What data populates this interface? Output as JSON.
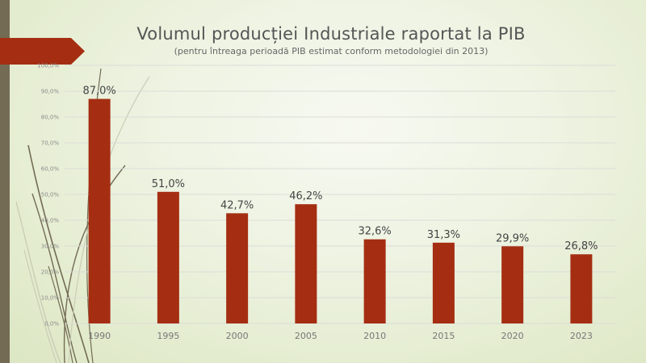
{
  "slide": {
    "title": "Volumul producției Industriale raportat la PIB",
    "subtitle": "(pentru întreaga perioadă PIB estimat conform metodologiei din 2013)"
  },
  "colors": {
    "bar": "#a52e12",
    "accent_banner": "#a52e12",
    "side_bar": "#736b54",
    "gridline": "#dcdcd8"
  },
  "chart_data": {
    "type": "bar",
    "title": "Volumul producției Industriale raportat la PIB",
    "subtitle": "(pentru întreaga perioadă PIB estimat conform metodologiei din 2013)",
    "categories": [
      "1990",
      "1995",
      "2000",
      "2005",
      "2010",
      "2015",
      "2020",
      "2023"
    ],
    "values": [
      87.0,
      51.0,
      42.7,
      46.2,
      32.6,
      31.3,
      29.9,
      26.8
    ],
    "data_labels": [
      "87,0%",
      "51,0%",
      "42,7%",
      "46,2%",
      "32,6%",
      "31,3%",
      "29,9%",
      "26,8%"
    ],
    "y_ticks": [
      0,
      10,
      20,
      30,
      40,
      50,
      60,
      70,
      80,
      90,
      100
    ],
    "y_tick_labels": [
      "0,0%",
      "10,0%",
      "20,0%",
      "30,0%",
      "40,0%",
      "50,0%",
      "60,0%",
      "70,0%",
      "80,0%",
      "90,0%",
      "100,0%"
    ],
    "xlabel": "",
    "ylabel": "",
    "ylim": [
      0,
      100
    ],
    "grid": true,
    "legend": "none"
  }
}
